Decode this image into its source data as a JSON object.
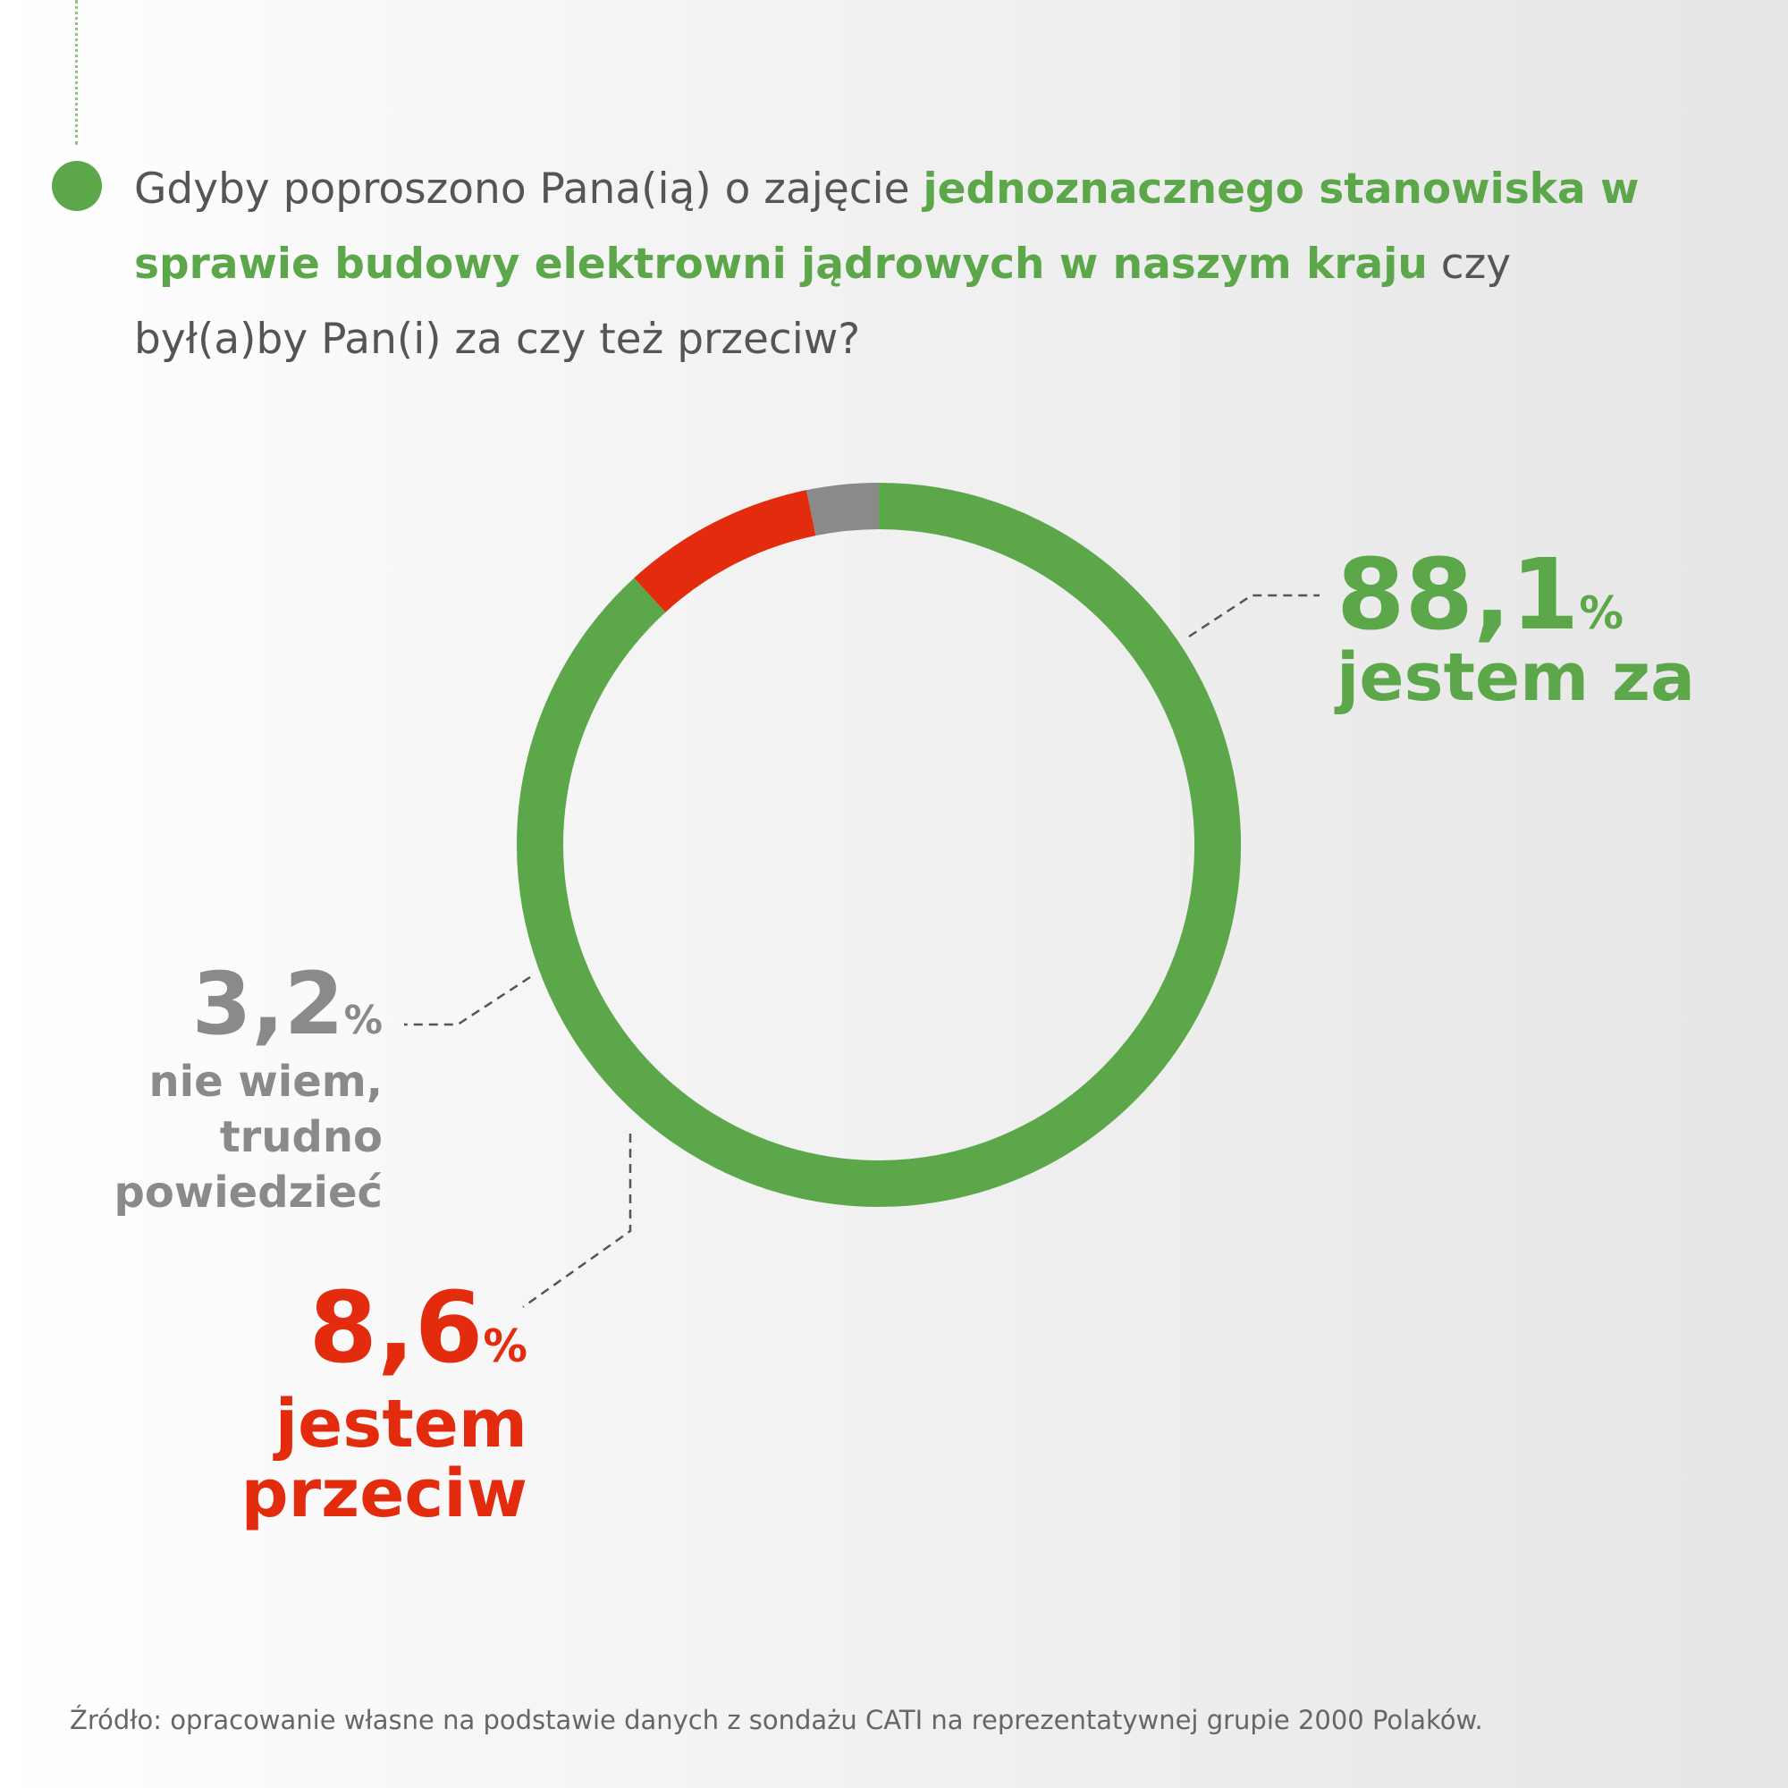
{
  "question": {
    "part1": "Gdyby poproszono Pana(ią) o zajęcie ",
    "highlight": "jednoznacznego stanowiska w sprawie budowy elektrowni jądrowych w naszym kraju",
    "part2": " czy był(a)by Pan(i) za czy też przeciw?"
  },
  "colors": {
    "green": "#5ba74a",
    "red": "#e32b0e",
    "gray": "#8a8a8a"
  },
  "chart_data": {
    "type": "pie",
    "variant": "donut",
    "title": "Gdyby poproszono Pana(ią) o zajęcie jednoznacznego stanowiska w sprawie budowy elektrowni jądrowych w naszym kraju czy był(a)by Pan(i) za czy też przeciw?",
    "categories": [
      "jestem za",
      "jestem przeciw",
      "nie wiem, trudno powiedzieć"
    ],
    "values": [
      88.1,
      8.6,
      3.2
    ],
    "colors": [
      "#5ba74a",
      "#e32b0e",
      "#8a8a8a"
    ],
    "labels": [
      {
        "value": "88,1",
        "unit": "%",
        "text": "jestem za"
      },
      {
        "value": "8,6",
        "unit": "%",
        "text_lines": [
          "jestem",
          "przeciw"
        ]
      },
      {
        "value": "3,2",
        "unit": "%",
        "text_lines": [
          "nie wiem,",
          "trudno",
          "powiedzieć"
        ]
      }
    ]
  },
  "source": "Źródło: opracowanie własne na podstawie danych z sondażu CATI na reprezentatywnej grupie 2000 Polaków."
}
